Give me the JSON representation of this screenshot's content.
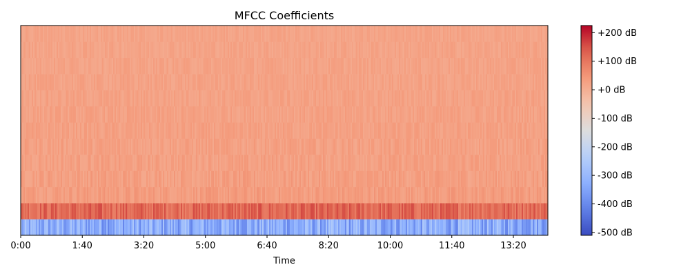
{
  "chart_data": {
    "type": "heatmap",
    "title": "MFCC Coefficients",
    "xlabel": "Time",
    "ylabel": "",
    "x_tick_labels": [
      "0:00",
      "1:40",
      "3:20",
      "5:00",
      "6:40",
      "8:20",
      "10:00",
      "11:40",
      "13:20"
    ],
    "x_tick_values_seconds": [
      0,
      100,
      200,
      300,
      400,
      500,
      600,
      700,
      800
    ],
    "xlim_seconds": [
      0,
      856
    ],
    "y_ticks_shown": false,
    "n_coefficients": 13,
    "row_band_levels_db": [
      -330,
      120,
      35,
      30,
      28,
      27,
      26,
      25,
      24,
      23,
      22,
      21,
      20
    ],
    "row_band_variation_db": [
      80,
      40,
      20,
      20,
      18,
      18,
      16,
      16,
      15,
      15,
      14,
      14,
      12
    ],
    "colorbar": {
      "colormap": "coolwarm",
      "range_db": [
        -510,
        225
      ],
      "tick_labels": [
        "+200 dB",
        "+100 dB",
        "+0 dB",
        "-100 dB",
        "-200 dB",
        "-300 dB",
        "-400 dB",
        "-500 dB"
      ],
      "tick_values_db": [
        200,
        100,
        0,
        -100,
        -200,
        -300,
        -400,
        -500
      ]
    },
    "grid": false
  },
  "colors": {
    "cold": "#3b4cc0",
    "neutral": "#dddddd",
    "warm": "#b40426",
    "frame": "#000000"
  }
}
